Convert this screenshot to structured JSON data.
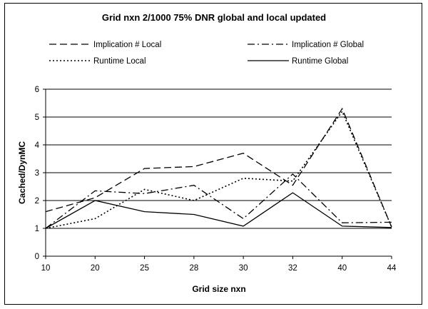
{
  "chart_data": {
    "type": "line",
    "title": "Grid nxn  2/1000 75% DNR global and local updated",
    "xlabel": "Grid size nxn",
    "ylabel": "Cached/DynMC",
    "categories": [
      "10",
      "20",
      "25",
      "28",
      "30",
      "32",
      "40",
      "44"
    ],
    "ylim": [
      0,
      6
    ],
    "yticks": [
      "0",
      "1",
      "2",
      "3",
      "4",
      "5",
      "6"
    ],
    "grid": true,
    "legend_position": "top",
    "series": [
      {
        "name": "Implication # Local",
        "style": "dashed",
        "values": [
          1.6,
          2.1,
          3.15,
          3.22,
          3.7,
          2.55,
          5.3,
          1.05
        ]
      },
      {
        "name": "Implication # Global",
        "style": "dash-dot",
        "values": [
          1.0,
          2.35,
          2.25,
          2.55,
          1.35,
          2.95,
          1.2,
          1.22
        ]
      },
      {
        "name": "Runtime Local",
        "style": "dotted",
        "values": [
          1.0,
          1.35,
          2.4,
          2.0,
          2.8,
          2.7,
          5.2,
          1.05
        ]
      },
      {
        "name": "Runtime Global",
        "style": "solid",
        "values": [
          1.0,
          2.0,
          1.6,
          1.5,
          1.08,
          2.28,
          1.08,
          1.03
        ]
      }
    ]
  }
}
